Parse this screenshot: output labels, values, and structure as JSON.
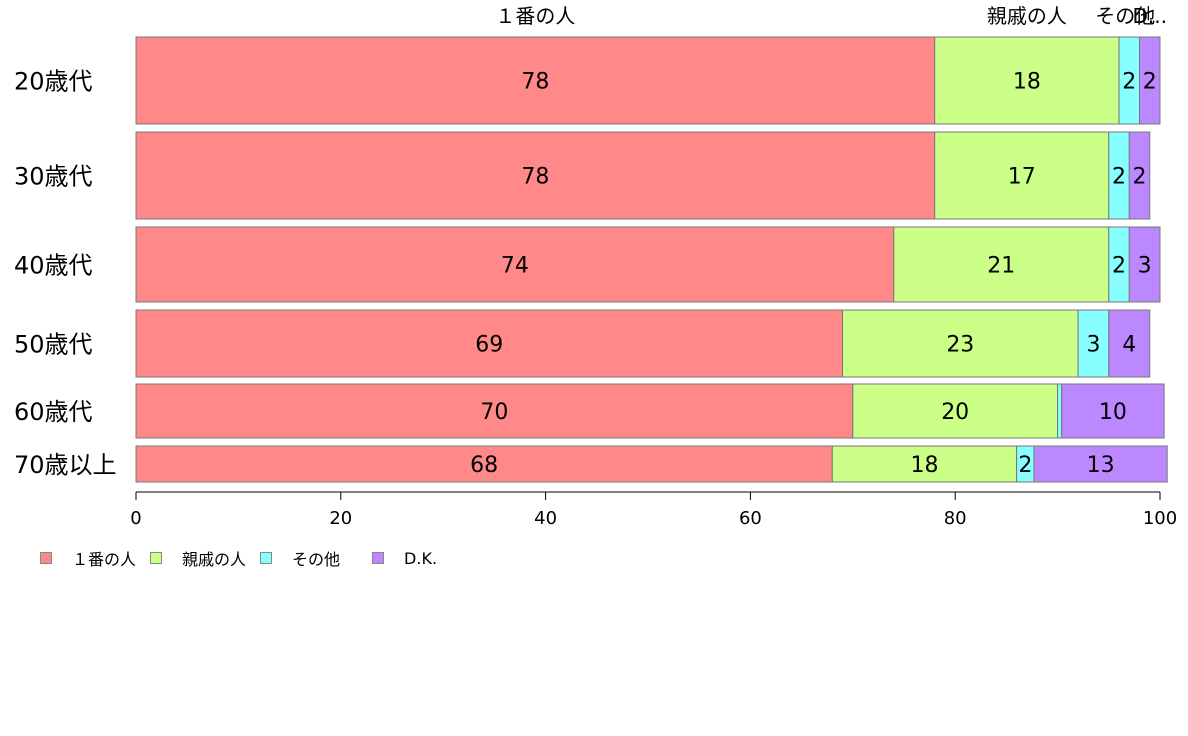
{
  "chart_data": {
    "type": "bar",
    "orientation": "horizontal",
    "stacked": true,
    "categories": [
      "20歳代",
      "30歳代",
      "40歳代",
      "50歳代",
      "60歳代",
      "70歳以上"
    ],
    "series": [
      {
        "name": "１番の人",
        "color": "#ff8888",
        "values": [
          78,
          78,
          74,
          69,
          70,
          68
        ]
      },
      {
        "name": "親戚の人",
        "color": "#ccff88",
        "values": [
          18,
          17,
          21,
          23,
          20,
          18
        ]
      },
      {
        "name": "その他",
        "color": "#88ffff",
        "values": [
          2,
          2,
          2,
          3,
          0.4,
          1.7
        ]
      },
      {
        "name": "D.K.",
        "color": "#bb88ff",
        "values": [
          2,
          2,
          3,
          4,
          10,
          13
        ]
      }
    ],
    "data_labels": [
      [
        "78",
        "18",
        "2",
        "2"
      ],
      [
        "78",
        "17",
        "2",
        "2"
      ],
      [
        "74",
        "21",
        "2",
        "3"
      ],
      [
        "69",
        "23",
        "3",
        "4"
      ],
      [
        "70",
        "20",
        "",
        "10"
      ],
      [
        "68",
        "18",
        "2",
        "13"
      ]
    ],
    "top_labels": [
      "１番の人",
      "親戚の人",
      "その他",
      "D..."
    ],
    "x_ticks": [
      "0",
      "20",
      "40",
      "60",
      "80",
      "100"
    ],
    "xlim": [
      0,
      100
    ],
    "grid": false,
    "legend_position": "bottom-left"
  },
  "legend": [
    {
      "label": "１番の人",
      "color": "#ff8888"
    },
    {
      "label": "親戚の人",
      "color": "#ccff88"
    },
    {
      "label": "その他",
      "color": "#88ffff"
    },
    {
      "label": "D.K.",
      "color": "#bb88ff"
    }
  ]
}
